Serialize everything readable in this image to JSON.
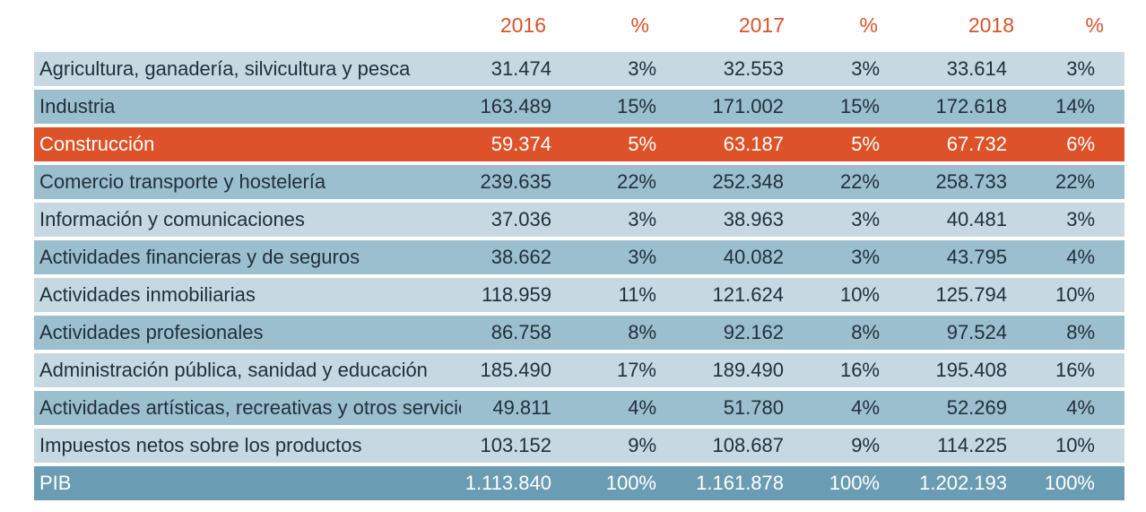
{
  "header": {
    "label": "",
    "year1": "2016",
    "pct1": "%",
    "year2": "2017",
    "pct2": "%",
    "year3": "2018",
    "pct3": "%"
  },
  "rows": [
    {
      "label": "Agricultura, ganadería, silvicultura y pesca",
      "v1": "31.474",
      "p1": "3%",
      "v2": "32.553",
      "p2": "3%",
      "v3": "33.614",
      "p3": "3%"
    },
    {
      "label": "Industria",
      "v1": "163.489",
      "p1": "15%",
      "v2": "171.002",
      "p2": "15%",
      "v3": "172.618",
      "p3": "14%"
    },
    {
      "label": "Construcción",
      "v1": "59.374",
      "p1": "5%",
      "v2": "63.187",
      "p2": "5%",
      "v3": "67.732",
      "p3": "6%"
    },
    {
      "label": "Comercio transporte y hostelería",
      "v1": "239.635",
      "p1": "22%",
      "v2": "252.348",
      "p2": "22%",
      "v3": "258.733",
      "p3": "22%"
    },
    {
      "label": "Información y comunicaciones",
      "v1": "37.036",
      "p1": "3%",
      "v2": "38.963",
      "p2": "3%",
      "v3": "40.481",
      "p3": "3%"
    },
    {
      "label": "Actividades financieras y de seguros",
      "v1": "38.662",
      "p1": "3%",
      "v2": "40.082",
      "p2": "3%",
      "v3": "43.795",
      "p3": "4%"
    },
    {
      "label": "Actividades inmobiliarias",
      "v1": "118.959",
      "p1": "11%",
      "v2": "121.624",
      "p2": "10%",
      "v3": "125.794",
      "p3": "10%"
    },
    {
      "label": "Actividades profesionales",
      "v1": "86.758",
      "p1": "8%",
      "v2": "92.162",
      "p2": "8%",
      "v3": "97.524",
      "p3": "8%"
    },
    {
      "label": "Administración pública, sanidad y educación",
      "v1": "185.490",
      "p1": "17%",
      "v2": "189.490",
      "p2": "16%",
      "v3": "195.408",
      "p3": "16%"
    },
    {
      "label": "Actividades artísticas, recreativas y otros servicios",
      "v1": "49.811",
      "p1": "4%",
      "v2": "51.780",
      "p2": "4%",
      "v3": "52.269",
      "p3": "4%"
    },
    {
      "label": "Impuestos netos sobre los productos",
      "v1": "103.152",
      "p1": "9%",
      "v2": "108.687",
      "p2": "9%",
      "v3": "114.225",
      "p3": "10%"
    },
    {
      "label": "PIB",
      "v1": "1.113.840",
      "p1": "100%",
      "v2": "1.161.878",
      "p2": "100%",
      "v3": "1.202.193",
      "p3": "100%"
    }
  ],
  "colors": {
    "header_text": "#d9532b",
    "row_light": "#c6d8e2",
    "row_dark": "#9bbfce",
    "highlight": "#dd5229",
    "total": "#6a9db3"
  }
}
